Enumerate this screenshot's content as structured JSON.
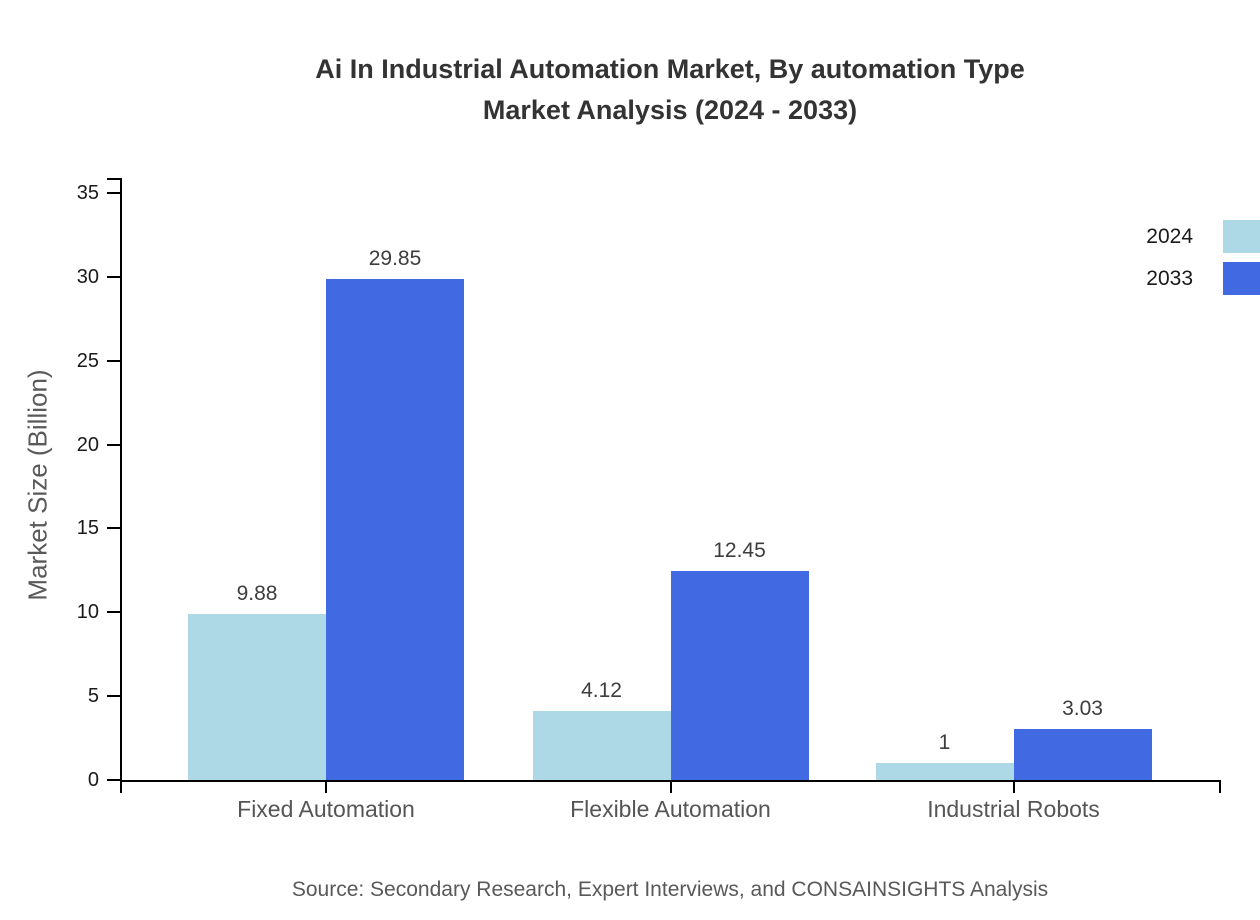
{
  "title": {
    "line1": "Ai In Industrial Automation Market, By automation Type",
    "line2": "Market Analysis (2024 - 2033)"
  },
  "source_note": "Source: Secondary Research, Expert Interviews, and CONSAINSIGHTS Analysis",
  "chart_data": {
    "type": "bar",
    "title": "Ai In Industrial Automation Market, By automation Type Market Analysis (2024 - 2033)",
    "categories": [
      "Fixed Automation",
      "Flexible Automation",
      "Industrial Robots"
    ],
    "series": [
      {
        "name": "2024",
        "color": "#ADD8E6",
        "values": [
          9.88,
          4.12,
          1
        ]
      },
      {
        "name": "2033",
        "color": "#4169E1",
        "values": [
          29.85,
          12.45,
          3.03
        ]
      }
    ],
    "xlabel": "",
    "ylabel": "Market Size (Billion)",
    "ylim": [
      0,
      35
    ],
    "yticks": [
      0,
      5,
      10,
      15,
      20,
      25,
      30,
      35
    ],
    "grid": false,
    "legend_position": "top-right-outside",
    "axis_color": "#000000"
  }
}
